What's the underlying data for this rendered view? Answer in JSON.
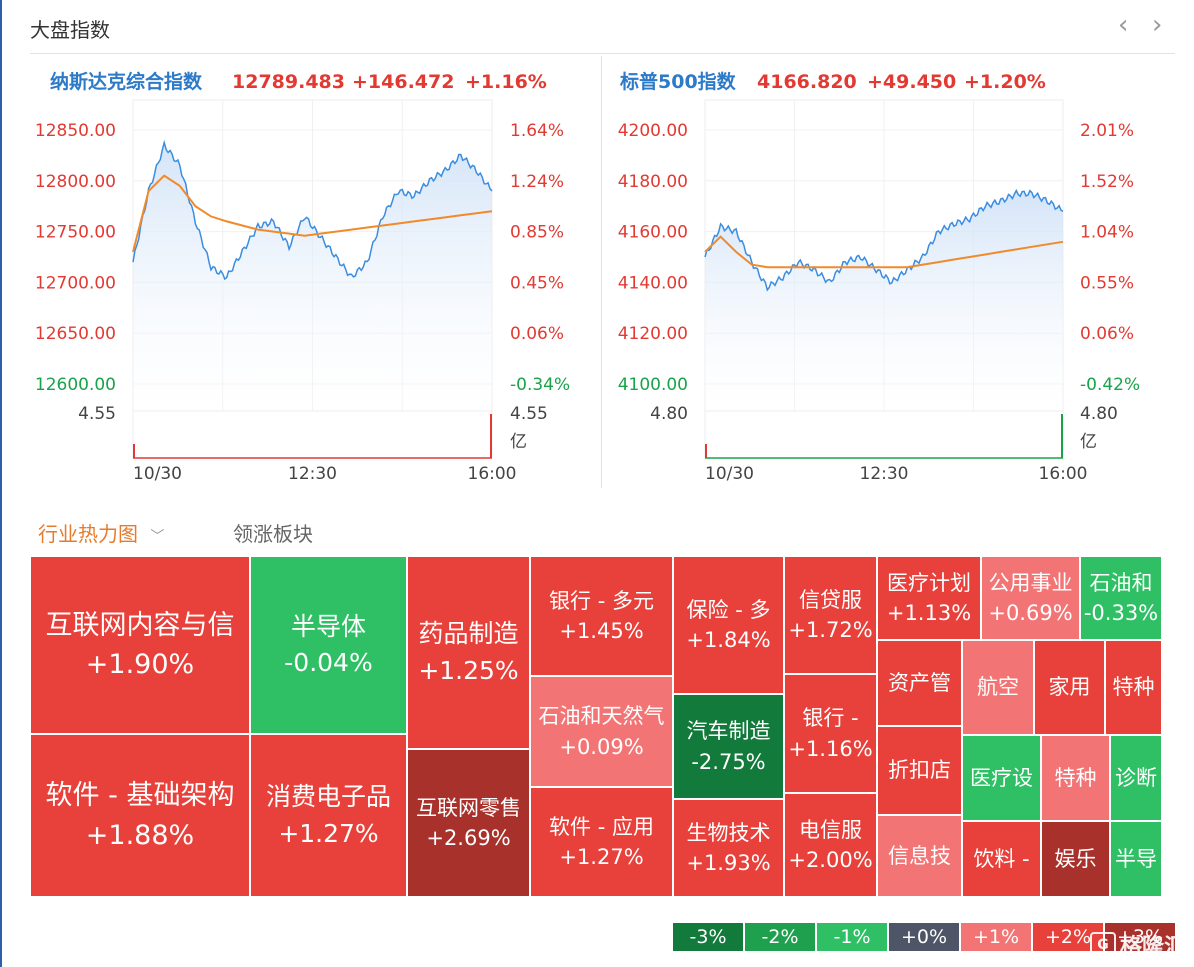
{
  "panel": {
    "title": "大盘指数",
    "prev_icon": "chevron-left",
    "next_icon": "chevron-right"
  },
  "colors": {
    "red": "#e23a33",
    "green": "#1aa34a",
    "name_blue": "#2d7ac8",
    "line_blue": "#3a8de0",
    "avg_orange": "#f08a2b"
  },
  "indices": [
    {
      "name": "纳斯达克综合指数",
      "price": "12789.483",
      "change": "+146.472",
      "pct": "+1.16%",
      "price_ticks": [
        "12850.00",
        "12800.00",
        "12750.00",
        "12700.00",
        "12650.00",
        "12600.00"
      ],
      "pct_ticks": [
        "1.64%",
        "1.24%",
        "0.85%",
        "0.45%",
        "0.06%",
        "-0.34%"
      ],
      "volume_label": "4.55",
      "volume_label_right": "4.55",
      "volume_unit": "亿",
      "time_ticks": [
        "10/30",
        "12:30",
        "16:00"
      ]
    },
    {
      "name": "标普500指数",
      "price": "4166.820",
      "change": "+49.450",
      "pct": "+1.20%",
      "price_ticks": [
        "4200.00",
        "4180.00",
        "4160.00",
        "4140.00",
        "4120.00",
        "4100.00"
      ],
      "pct_ticks": [
        "2.01%",
        "1.52%",
        "1.04%",
        "0.55%",
        "0.06%",
        "-0.42%"
      ],
      "volume_label": "4.80",
      "volume_label_right": "4.80",
      "volume_unit": "亿",
      "time_ticks": [
        "10/30",
        "12:30",
        "16:00"
      ]
    }
  ],
  "chart_data": [
    {
      "type": "line",
      "title": "纳斯达克综合指数",
      "x_ticks": [
        "10/30",
        "12:30",
        "16:00"
      ],
      "ylim": [
        12600,
        12850
      ],
      "series": [
        {
          "values": [
            12720,
            12790,
            12835,
            12815,
            12760,
            12715,
            12705,
            12730,
            12755,
            12760,
            12735,
            12765,
            12745,
            12725,
            12705,
            12720,
            12765,
            12790,
            12785,
            12800,
            12810,
            12825,
            12810,
            12790
          ]
        },
        {
          "values": [
            12730,
            12790,
            12805,
            12795,
            12775,
            12765,
            12760,
            12756,
            12752,
            12750,
            12748,
            12746,
            12748,
            12750,
            12752,
            12754,
            12756,
            12758,
            12760,
            12762,
            12764,
            12766,
            12768,
            12770
          ]
        }
      ]
    },
    {
      "type": "line",
      "title": "标普500指数",
      "x_ticks": [
        "10/30",
        "12:30",
        "16:00"
      ],
      "ylim": [
        4100,
        4200
      ],
      "series": [
        {
          "values": [
            4150,
            4162,
            4160,
            4148,
            4138,
            4142,
            4148,
            4145,
            4140,
            4148,
            4150,
            4145,
            4140,
            4145,
            4150,
            4160,
            4163,
            4165,
            4170,
            4172,
            4175,
            4175,
            4172,
            4168
          ]
        },
        {
          "values": [
            4152,
            4158,
            4152,
            4147,
            4146,
            4146,
            4146,
            4146,
            4146,
            4146,
            4146,
            4146,
            4146,
            4146,
            4147,
            4148,
            4149,
            4150,
            4151,
            4152,
            4153,
            4154,
            4155,
            4156
          ]
        }
      ]
    }
  ],
  "tabs": {
    "active": "行业热力图",
    "inactive": "领涨板块",
    "dropdown_icon": "chevron-down"
  },
  "heatmap": [
    {
      "name": "互联网内容与信",
      "pct": "+1.90%",
      "color": "#e8403a"
    },
    {
      "name": "半导体",
      "pct": "-0.04%",
      "color": "#2fc065"
    },
    {
      "name": "药品制造",
      "pct": "+1.25%",
      "color": "#e8403a"
    },
    {
      "name": "银行 - 多元",
      "pct": "+1.45%",
      "color": "#e8403a"
    },
    {
      "name": "保险 - 多",
      "pct": "+1.84%",
      "color": "#e8403a"
    },
    {
      "name": "信贷服",
      "pct": "+1.72%",
      "color": "#e8403a"
    },
    {
      "name": "医疗计划",
      "pct": "+1.13%",
      "color": "#e8403a"
    },
    {
      "name": "公用事业",
      "pct": "+0.69%",
      "color": "#f37474"
    },
    {
      "name": "石油和",
      "pct": "-0.33%",
      "color": "#2fc065"
    },
    {
      "name": "石油和天然气",
      "pct": "+0.09%",
      "color": "#f37474"
    },
    {
      "name": "汽车制造",
      "pct": "-2.75%",
      "color": "#127a3b"
    },
    {
      "name": "银行 -",
      "pct": "+1.16%",
      "color": "#e8403a"
    },
    {
      "name": "资产管",
      "pct": "",
      "color": "#e8403a"
    },
    {
      "name": "航空",
      "pct": "",
      "color": "#f37474"
    },
    {
      "name": "家用",
      "pct": "",
      "color": "#e8403a"
    },
    {
      "name": "特种",
      "pct": "",
      "color": "#e8403a"
    },
    {
      "name": "软件 - 基础架构",
      "pct": "+1.88%",
      "color": "#e8403a"
    },
    {
      "name": "消费电子品",
      "pct": "+1.27%",
      "color": "#e8403a"
    },
    {
      "name": "互联网零售",
      "pct": "+2.69%",
      "color": "#a8312c"
    },
    {
      "name": "软件 - 应用",
      "pct": "+1.27%",
      "color": "#e8403a"
    },
    {
      "name": "生物技术",
      "pct": "+1.93%",
      "color": "#e8403a"
    },
    {
      "name": "电信服",
      "pct": "+2.00%",
      "color": "#e8403a"
    },
    {
      "name": "折扣店",
      "pct": "",
      "color": "#e8403a"
    },
    {
      "name": "医疗设",
      "pct": "",
      "color": "#2fc065"
    },
    {
      "name": "特种",
      "pct": "",
      "color": "#f37474"
    },
    {
      "name": "诊断",
      "pct": "",
      "color": "#2fc065"
    },
    {
      "name": "信息技",
      "pct": "",
      "color": "#f37474"
    },
    {
      "name": "饮料 -",
      "pct": "",
      "color": "#e8403a"
    },
    {
      "name": "娱乐",
      "pct": "",
      "color": "#a8312c"
    },
    {
      "name": "半导",
      "pct": "",
      "color": "#2fc065"
    }
  ],
  "legend": [
    {
      "label": "-3%",
      "color": "#127a3b"
    },
    {
      "label": "-2%",
      "color": "#1fa04f"
    },
    {
      "label": "-1%",
      "color": "#2fc065"
    },
    {
      "label": "+0%",
      "color": "#4d5566"
    },
    {
      "label": "+1%",
      "color": "#f37474"
    },
    {
      "label": "+2%",
      "color": "#e8403a"
    },
    {
      "label": "+3%",
      "color": "#a8312c"
    }
  ],
  "watermark": {
    "text": "格隆汇"
  }
}
